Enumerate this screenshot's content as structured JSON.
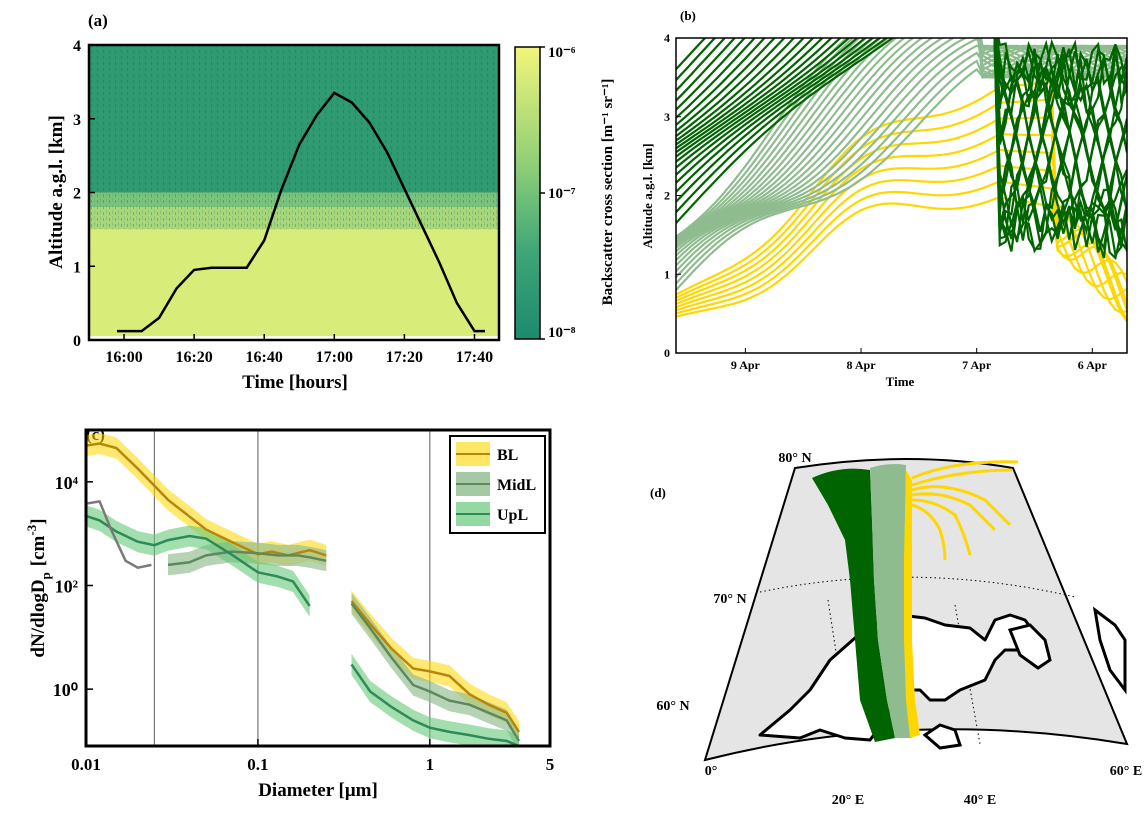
{
  "chart_data": [
    {
      "panel": "(a)",
      "type": "heatmap",
      "xlabel": "Time [hours]",
      "ylabel": "Altitude a.g.l. [km]",
      "xticks": [
        "16:00",
        "16:20",
        "16:40",
        "17:00",
        "17:20",
        "17:40"
      ],
      "xtick_minutes": [
        960,
        980,
        1000,
        1020,
        1040,
        1060
      ],
      "xlim_minutes": [
        950,
        1067
      ],
      "yticks": [
        "0",
        "1",
        "2",
        "3",
        "4"
      ],
      "ylim": [
        0,
        4
      ],
      "colorbar": {
        "label": "Backscatter cross section [m⁻¹ sr⁻¹]",
        "ticks": [
          "10⁻⁸",
          "10⁻⁷",
          "10⁻⁶"
        ],
        "low_color": "#1d8a6e",
        "high_color": "#f3f57a"
      },
      "backscatter_layers": [
        {
          "alt_from": 0.05,
          "alt_to": 1.5,
          "level": "high"
        },
        {
          "alt_from": 1.5,
          "alt_to": 1.8,
          "level": "mid-high"
        },
        {
          "alt_from": 1.8,
          "alt_to": 2.0,
          "level": "mid"
        },
        {
          "alt_from": 2.0,
          "alt_to": 4.0,
          "level": "low"
        }
      ],
      "series": [
        {
          "color": "#000000",
          "x_minutes": [
            958,
            960,
            965,
            970,
            975,
            980,
            985,
            990,
            995,
            1000,
            1005,
            1010,
            1015,
            1020,
            1025,
            1030,
            1035,
            1040,
            1045,
            1050,
            1055,
            1060,
            1063
          ],
          "y": [
            0.12,
            0.12,
            0.12,
            0.3,
            0.7,
            0.95,
            0.98,
            0.98,
            0.98,
            1.35,
            2.05,
            2.65,
            3.05,
            3.35,
            3.22,
            2.95,
            2.55,
            2.05,
            1.55,
            1.05,
            0.5,
            0.12,
            0.12
          ]
        }
      ]
    },
    {
      "panel": "(b)",
      "type": "line",
      "xlabel": "Time",
      "ylabel": "Altitude a.g.l. [km]",
      "xticks": [
        "9 Apr",
        "8 Apr",
        "7 Apr",
        "6 Apr"
      ],
      "xtick_days_back": [
        0.6,
        1.6,
        2.6,
        3.6
      ],
      "xlim_days_back": [
        0,
        3.9
      ],
      "yticks": [
        "0",
        "1",
        "2",
        "3",
        "4"
      ],
      "ylim": [
        0,
        4
      ],
      "groups": [
        {
          "name": "UpL",
          "color": "#006400",
          "count": 22,
          "start_alt": [
            1.65,
            3.6
          ]
        },
        {
          "name": "MidL",
          "color": "#8fbc8f",
          "count": 20,
          "start_alt": [
            0.8,
            1.6
          ]
        },
        {
          "name": "BL",
          "color": "#ffd700",
          "count": 8,
          "start_alt": [
            0.5,
            0.78
          ]
        }
      ]
    },
    {
      "panel": "(c)",
      "type": "line",
      "xlabel": "Diameter [μm]",
      "ylabel": "dN/dlogD",
      "ylabel_sub": "p",
      "ylabel_units": "[cm",
      "ylabel_units_sup": "-3",
      "xscale": "log",
      "yscale": "log",
      "xlim": [
        0.01,
        5
      ],
      "ylim": [
        0.08,
        100000
      ],
      "xticks": [
        "0.01",
        "0.1",
        "1",
        "5"
      ],
      "xtick_values": [
        0.01,
        0.1,
        1,
        5
      ],
      "yticks": [
        "10⁰",
        "10²",
        "10⁴"
      ],
      "ytick_values": [
        1,
        100,
        10000
      ],
      "vlines": [
        0.025,
        0.1,
        1
      ],
      "legend": [
        "BL",
        "MidL",
        "UpL"
      ],
      "legend_position": "top-right",
      "series": [
        {
          "name": "BL",
          "color": "#b8860b",
          "fill": "#ffd700",
          "segments": [
            {
              "x": [
                0.01,
                0.012,
                0.015,
                0.02,
                0.03,
                0.05,
                0.07,
                0.1,
                0.12,
                0.15,
                0.2,
                0.25
              ],
              "y": [
                50000,
                55000,
                45000,
                18000,
                4500,
                1200,
                700,
                400,
                450,
                380,
                480,
                380
              ]
            },
            {
              "x": [
                0.35,
                0.45,
                0.6,
                0.8,
                1.0,
                1.3,
                1.7,
                2.2,
                2.8,
                3.3
              ],
              "y": [
                50,
                18,
                6,
                2.5,
                2.2,
                1.8,
                0.8,
                0.5,
                0.35,
                0.15
              ]
            }
          ]
        },
        {
          "name": "MidL",
          "color": "#5d8a5d",
          "fill": "#8fbc8f",
          "segments": [
            {
              "x": [
                0.03,
                0.04,
                0.05,
                0.07,
                0.1,
                0.13,
                0.17,
                0.2,
                0.25
              ],
              "y": [
                250,
                280,
                380,
                450,
                420,
                380,
                380,
                350,
                300
              ]
            },
            {
              "x": [
                0.35,
                0.45,
                0.6,
                0.8,
                1.0,
                1.3,
                1.7,
                2.2,
                2.8,
                3.3
              ],
              "y": [
                45,
                15,
                4,
                1.2,
                0.9,
                0.6,
                0.5,
                0.35,
                0.25,
                0.1
              ]
            }
          ]
        },
        {
          "name": "UpL",
          "color": "#2e8b57",
          "fill": "#66c87a",
          "segments": [
            {
              "x": [
                0.01,
                0.012,
                0.015,
                0.02,
                0.025,
                0.03,
                0.04,
                0.05,
                0.07,
                0.1,
                0.13,
                0.16,
                0.2
              ],
              "y": [
                2200,
                1800,
                1100,
                700,
                600,
                750,
                900,
                800,
                400,
                180,
                150,
                120,
                40
              ]
            },
            {
              "x": [
                0.35,
                0.45,
                0.6,
                0.8,
                1.0,
                1.3,
                1.7,
                2.2,
                2.8,
                3.3
              ],
              "y": [
                3,
                0.9,
                0.45,
                0.25,
                0.18,
                0.15,
                0.13,
                0.11,
                0.1,
                0.08
              ]
            }
          ]
        },
        {
          "name": "",
          "color": "#7a7a7a",
          "fill": "",
          "segments": [
            {
              "x": [
                0.01,
                0.012,
                0.014,
                0.017,
                0.02,
                0.024
              ],
              "y": [
                3800,
                4200,
                1200,
                300,
                220,
                250
              ]
            }
          ]
        }
      ]
    },
    {
      "panel": "(d)",
      "type": "map",
      "projection": "conic",
      "lat_labels": [
        "80° N",
        "70° N",
        "60° N"
      ],
      "lon_labels": [
        "0°",
        "20° E",
        "40° E",
        "60° E"
      ],
      "land_color": "#ffffff",
      "sea_color": "#e5e5e5",
      "coast_color": "#000000",
      "bands": [
        {
          "name": "UpL",
          "color": "#006400"
        },
        {
          "name": "MidL",
          "color": "#8fbc8f"
        },
        {
          "name": "BL",
          "color": "#ffd700"
        }
      ]
    }
  ]
}
